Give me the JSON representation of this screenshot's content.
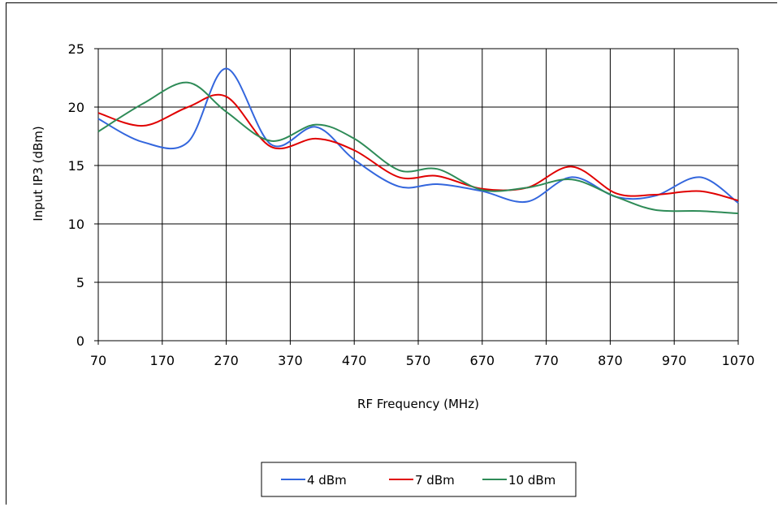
{
  "chart_data": {
    "type": "line",
    "title": "",
    "xlabel": "RF Frequency (MHz)",
    "ylabel": "Input IP3 (dBm)",
    "xlim": [
      70,
      1070
    ],
    "ylim": [
      0,
      25
    ],
    "xticks": [
      "70",
      "170",
      "270",
      "370",
      "470",
      "570",
      "670",
      "770",
      "870",
      "970",
      "1070"
    ],
    "yticks": [
      "0",
      "5",
      "10",
      "15",
      "20",
      "25"
    ],
    "grid": true,
    "legend_position": "bottom",
    "series": [
      {
        "name": "4 dBm",
        "color": "#3366dd",
        "x": [
          70,
          140,
          210,
          270,
          340,
          410,
          470,
          540,
          600,
          670,
          740,
          810,
          880,
          940,
          1010,
          1070
        ],
        "y": [
          19.0,
          17.0,
          17.0,
          23.3,
          16.8,
          18.3,
          15.5,
          13.2,
          13.4,
          12.8,
          11.9,
          14.0,
          12.3,
          12.4,
          14.0,
          11.8
        ]
      },
      {
        "name": "7 dBm",
        "color": "#e00000",
        "x": [
          70,
          140,
          210,
          270,
          340,
          410,
          470,
          540,
          600,
          670,
          740,
          810,
          880,
          940,
          1010,
          1070
        ],
        "y": [
          19.5,
          18.4,
          20.0,
          20.9,
          16.6,
          17.3,
          16.3,
          14.0,
          14.1,
          13.0,
          13.1,
          14.9,
          12.6,
          12.5,
          12.8,
          12.0
        ]
      },
      {
        "name": "10 dBm",
        "color": "#2e8b57",
        "x": [
          70,
          140,
          210,
          270,
          340,
          410,
          470,
          540,
          600,
          670,
          740,
          810,
          880,
          940,
          1010,
          1070
        ],
        "y": [
          17.9,
          20.3,
          22.1,
          19.6,
          17.1,
          18.5,
          17.3,
          14.6,
          14.7,
          12.9,
          13.1,
          13.8,
          12.3,
          11.2,
          11.1,
          10.9
        ]
      }
    ]
  }
}
